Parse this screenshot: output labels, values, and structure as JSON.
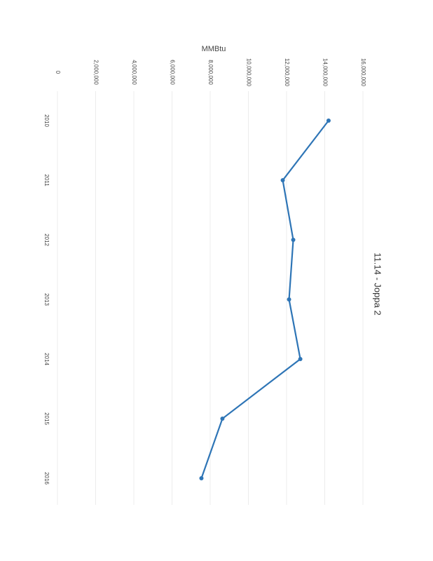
{
  "chart_data": {
    "type": "line",
    "title": "11.14 - Joppa 2",
    "y_label": "MMBtu",
    "categories": [
      "2010",
      "2011",
      "2012",
      "2013",
      "2014",
      "2015",
      "2016"
    ],
    "values": [
      14200000,
      11800000,
      12350000,
      12130000,
      12720000,
      8640000,
      7540000
    ],
    "color": "#2e75b6",
    "ylim": [
      0,
      16000000
    ],
    "yticks": [
      0,
      {
        "value": 2000000,
        "label": "2,000,000"
      },
      {
        "value": 4000000,
        "label": "4,000,000"
      },
      {
        "value": 6000000,
        "label": "6,000,000"
      },
      {
        "value": 8000000,
        "label": "8,000,000"
      },
      {
        "value": 10000000,
        "label": "10,000,000"
      },
      {
        "value": 12000000,
        "label": "12,000,000"
      },
      {
        "value": 14000000,
        "label": "14,000,000"
      },
      {
        "value": 16000000,
        "label": "16,000,000"
      }
    ],
    "grid": true
  }
}
